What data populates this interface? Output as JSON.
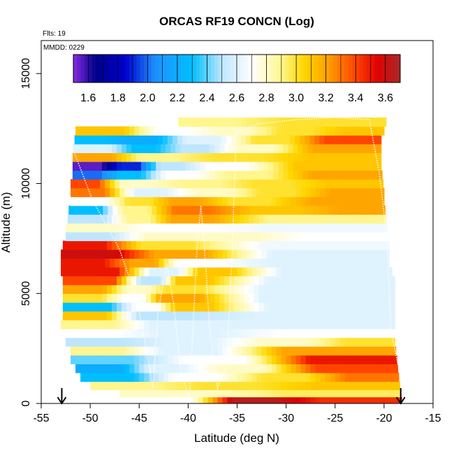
{
  "chart_data": {
    "type": "heatmap",
    "title": "ORCAS RF19 CONCN (Log)",
    "annotations": {
      "flights": "Flts: 19",
      "date": "MMDD: 0229"
    },
    "xlabel": "Latitude (deg N)",
    "ylabel": "Altitude (m)",
    "xlim": [
      -55,
      -15
    ],
    "ylim": [
      0,
      16500
    ],
    "x_ticks": [
      -55,
      -50,
      -45,
      -40,
      -35,
      -30,
      -25,
      -20,
      -15
    ],
    "y_ticks": [
      0,
      5000,
      10000,
      15000
    ],
    "colorbar": {
      "range": [
        1.5,
        3.7
      ],
      "ticks": [
        1.6,
        1.8,
        2.0,
        2.2,
        2.4,
        2.6,
        2.8,
        3.0,
        3.2,
        3.4,
        3.6
      ],
      "stops": [
        {
          "v": 1.5,
          "c": "#8a2be2"
        },
        {
          "v": 1.65,
          "c": "#00008b"
        },
        {
          "v": 1.85,
          "c": "#0000cd"
        },
        {
          "v": 2.05,
          "c": "#1e90ff"
        },
        {
          "v": 2.3,
          "c": "#00bfff"
        },
        {
          "v": 2.5,
          "c": "#bfe6ff"
        },
        {
          "v": 2.7,
          "c": "#ffffff"
        },
        {
          "v": 2.9,
          "c": "#fff68f"
        },
        {
          "v": 3.05,
          "c": "#ffd700"
        },
        {
          "v": 3.2,
          "c": "#ffa500"
        },
        {
          "v": 3.4,
          "c": "#ff4500"
        },
        {
          "v": 3.55,
          "c": "#e00000"
        },
        {
          "v": 3.7,
          "c": "#a52a2a"
        }
      ]
    },
    "coverage_edges": [
      {
        "alt": 0,
        "lat_min": -46.5,
        "lat_max": -18.2
      },
      {
        "alt": 1000,
        "lat_min": -50.0,
        "lat_max": -18.4
      },
      {
        "alt": 2000,
        "lat_min": -52.0,
        "lat_max": -18.6
      },
      {
        "alt": 3200,
        "lat_min": -53.0,
        "lat_max": -18.9
      },
      {
        "alt": 5000,
        "lat_min": -52.8,
        "lat_max": -19.0
      },
      {
        "alt": 6500,
        "lat_min": -53.0,
        "lat_max": -19.5
      },
      {
        "alt": 7500,
        "lat_min": -52.5,
        "lat_max": -19.5
      },
      {
        "alt": 9500,
        "lat_min": -52.0,
        "lat_max": -20.0
      },
      {
        "alt": 11500,
        "lat_min": -51.8,
        "lat_max": -20.3
      },
      {
        "alt": 12600,
        "lat_min": -51.5,
        "lat_max": -19.8
      }
    ],
    "bands": [
      {
        "alt": 150,
        "segments": [
          [
            -47,
            -36.5,
            2.7
          ],
          [
            -36.5,
            -30,
            3.65
          ],
          [
            -30,
            -18.2,
            3.45
          ]
        ]
      },
      {
        "alt": 450,
        "segments": [
          [
            -47,
            -35,
            2.8
          ],
          [
            -35,
            -18.3,
            2.95
          ]
        ]
      },
      {
        "alt": 800,
        "segments": [
          [
            -50,
            -42,
            2.9
          ],
          [
            -42,
            -30,
            3.0
          ],
          [
            -30,
            -18.4,
            3.1
          ]
        ]
      },
      {
        "alt": 1200,
        "segments": [
          [
            -51,
            -44,
            2.3
          ],
          [
            -44,
            -35,
            2.7
          ],
          [
            -35,
            -25,
            3.0
          ],
          [
            -25,
            -18.5,
            3.3
          ]
        ]
      },
      {
        "alt": 1600,
        "segments": [
          [
            -51.5,
            -45,
            2.2
          ],
          [
            -45,
            -40,
            2.6
          ],
          [
            -40,
            -30,
            2.8
          ],
          [
            -30,
            -18.6,
            3.4
          ]
        ]
      },
      {
        "alt": 2000,
        "segments": [
          [
            -52,
            -45,
            2.4
          ],
          [
            -45,
            -30,
            2.7
          ],
          [
            -30,
            -18.7,
            3.5
          ]
        ]
      },
      {
        "alt": 2400,
        "segments": [
          [
            -52,
            -46,
            2.9
          ],
          [
            -46,
            -35,
            2.6
          ],
          [
            -35,
            -18.8,
            3.2
          ]
        ]
      },
      {
        "alt": 2800,
        "segments": [
          [
            -52.5,
            -45,
            2.5
          ],
          [
            -45,
            -35,
            2.6
          ],
          [
            -35,
            -25,
            2.8
          ],
          [
            -25,
            -18.9,
            3.0
          ]
        ]
      },
      {
        "alt": 3200,
        "segments": [
          [
            -53,
            -46,
            2.7
          ],
          [
            -46,
            -35,
            2.6
          ],
          [
            -35,
            -18.9,
            2.7
          ]
        ]
      },
      {
        "alt": 3600,
        "segments": [
          [
            -53,
            -46,
            2.9
          ],
          [
            -46,
            -38,
            2.6
          ],
          [
            -38,
            -18.9,
            2.6
          ]
        ]
      },
      {
        "alt": 4000,
        "segments": [
          [
            -52.8,
            -47,
            3.1
          ],
          [
            -47,
            -40,
            2.5
          ],
          [
            -40,
            -18.9,
            2.6
          ]
        ]
      },
      {
        "alt": 4400,
        "segments": [
          [
            -52.8,
            -46,
            2.3
          ],
          [
            -46,
            -42,
            2.7
          ],
          [
            -42,
            -39,
            3.1
          ],
          [
            -39,
            -18.9,
            2.6
          ]
        ]
      },
      {
        "alt": 4800,
        "segments": [
          [
            -52.8,
            -47,
            3.0
          ],
          [
            -47,
            -44,
            2.7
          ],
          [
            -44,
            -40,
            3.2
          ],
          [
            -40,
            -18.9,
            2.6
          ]
        ]
      },
      {
        "alt": 5200,
        "segments": [
          [
            -52.8,
            -47,
            3.2
          ],
          [
            -47,
            -43,
            2.8
          ],
          [
            -43,
            -40,
            3.0
          ],
          [
            -40,
            -18.9,
            2.6
          ]
        ]
      },
      {
        "alt": 5600,
        "segments": [
          [
            -52.8,
            -45,
            3.4
          ],
          [
            -45,
            -42,
            2.5
          ],
          [
            -42,
            -39,
            3.1
          ],
          [
            -39,
            -18.9,
            2.6
          ]
        ]
      },
      {
        "alt": 6000,
        "segments": [
          [
            -53,
            -45,
            3.5
          ],
          [
            -45,
            -39,
            2.6
          ],
          [
            -39,
            -37,
            3.1
          ],
          [
            -37,
            -19.2,
            2.6
          ]
        ]
      },
      {
        "alt": 6400,
        "segments": [
          [
            -53,
            -47,
            3.5
          ],
          [
            -47,
            -42,
            3.2
          ],
          [
            -42,
            -38,
            2.7
          ],
          [
            -38,
            -19.5,
            2.6
          ]
        ]
      },
      {
        "alt": 6800,
        "segments": [
          [
            -53,
            -46,
            3.6
          ],
          [
            -46,
            -37,
            3.2
          ],
          [
            -37,
            -19.5,
            2.6
          ]
        ]
      },
      {
        "alt": 7200,
        "segments": [
          [
            -52.8,
            -48,
            3.5
          ],
          [
            -48,
            -38,
            3.0
          ],
          [
            -38,
            -19.5,
            2.65
          ]
        ]
      },
      {
        "alt": 7600,
        "segments": [
          [
            -52.5,
            -47,
            2.5
          ],
          [
            -47,
            -38,
            2.8
          ],
          [
            -38,
            -32,
            2.8
          ],
          [
            -32,
            -19.6,
            2.7
          ]
        ]
      },
      {
        "alt": 8000,
        "segments": [
          [
            -52.5,
            -47,
            2.8
          ],
          [
            -47,
            -37,
            2.7
          ],
          [
            -37,
            -19.7,
            2.65
          ]
        ]
      },
      {
        "alt": 8400,
        "segments": [
          [
            -52.3,
            -47,
            2.5
          ],
          [
            -47,
            -43,
            2.9
          ],
          [
            -43,
            -38,
            3.2
          ],
          [
            -38,
            -19.8,
            2.9
          ]
        ]
      },
      {
        "alt": 8800,
        "segments": [
          [
            -52.2,
            -48,
            2.3
          ],
          [
            -48,
            -43,
            2.9
          ],
          [
            -43,
            -37,
            3.3
          ],
          [
            -37,
            -25,
            3.1
          ],
          [
            -25,
            -19.9,
            3.2
          ]
        ]
      },
      {
        "alt": 9200,
        "segments": [
          [
            -52,
            -47,
            2.7
          ],
          [
            -47,
            -43,
            3.0
          ],
          [
            -43,
            -38,
            3.2
          ],
          [
            -38,
            -30,
            3.0
          ],
          [
            -30,
            -20,
            3.2
          ]
        ]
      },
      {
        "alt": 9600,
        "segments": [
          [
            -52,
            -48,
            3.3
          ],
          [
            -48,
            -40,
            2.6
          ],
          [
            -40,
            -35,
            2.8
          ],
          [
            -35,
            -27,
            3.0
          ],
          [
            -27,
            -20,
            3.2
          ]
        ]
      },
      {
        "alt": 10000,
        "segments": [
          [
            -52,
            -49,
            3.4
          ],
          [
            -49,
            -42,
            2.8
          ],
          [
            -42,
            -35,
            2.9
          ],
          [
            -35,
            -28,
            3.0
          ],
          [
            -28,
            -20.1,
            3.1
          ]
        ]
      },
      {
        "alt": 10400,
        "segments": [
          [
            -51.8,
            -48,
            2.0
          ],
          [
            -48,
            -44,
            2.3
          ],
          [
            -44,
            -38,
            2.7
          ],
          [
            -38,
            -30,
            2.9
          ],
          [
            -30,
            -20.2,
            3.2
          ]
        ]
      },
      {
        "alt": 10800,
        "segments": [
          [
            -51.8,
            -48,
            1.55
          ],
          [
            -48,
            -44,
            1.9
          ],
          [
            -44,
            -40,
            2.5
          ],
          [
            -40,
            -33,
            2.7
          ],
          [
            -33,
            -20.3,
            3.1
          ]
        ]
      },
      {
        "alt": 11200,
        "segments": [
          [
            -51.8,
            -47,
            3.2
          ],
          [
            -47,
            -40,
            2.9
          ],
          [
            -40,
            -30,
            3.0
          ],
          [
            -30,
            -20.3,
            3.1
          ]
        ]
      },
      {
        "alt": 11600,
        "segments": [
          [
            -51.8,
            -47,
            2.6
          ],
          [
            -47,
            -42,
            2.3
          ],
          [
            -42,
            -37,
            2.5
          ],
          [
            -37,
            -30,
            2.8
          ],
          [
            -30,
            -20.3,
            3.2
          ]
        ]
      },
      {
        "alt": 12000,
        "segments": [
          [
            -51.6,
            -48,
            2.3
          ],
          [
            -48,
            -42,
            2.2
          ],
          [
            -42,
            -35,
            2.6
          ],
          [
            -35,
            -28,
            3.0
          ],
          [
            -28,
            -20.3,
            3.4
          ]
        ]
      },
      {
        "alt": 12400,
        "segments": [
          [
            -51.5,
            -45,
            3.1
          ],
          [
            -45,
            -38,
            2.7
          ],
          [
            -38,
            -33,
            2.8
          ],
          [
            -33,
            -25,
            3.0
          ],
          [
            -25,
            -20,
            3.1
          ]
        ]
      },
      {
        "alt": 12800,
        "segments": [
          [
            -41,
            -35,
            2.9
          ],
          [
            -35,
            -19.8,
            3.0
          ]
        ]
      }
    ],
    "flight_track": [
      [
        -52.4,
        12300
      ],
      [
        -49.8,
        9300
      ],
      [
        -47.0,
        7000
      ],
      [
        -45.2,
        4700
      ],
      [
        -44.3,
        2500
      ],
      [
        -43.6,
        700
      ],
      [
        -43.1,
        4000
      ],
      [
        -42.2,
        6400
      ],
      [
        -41.5,
        4600
      ],
      [
        -40.7,
        1300
      ],
      [
        -39.9,
        300
      ],
      [
        -39.6,
        2600
      ],
      [
        -39.1,
        7000
      ],
      [
        -38.7,
        9000
      ],
      [
        -38.2,
        6300
      ],
      [
        -37.8,
        3300
      ],
      [
        -37.0,
        700
      ],
      [
        -36.1,
        1700
      ],
      [
        -35.5,
        7000
      ],
      [
        -35.1,
        12300
      ],
      [
        -33.0,
        12700
      ],
      [
        -29.0,
        12900
      ],
      [
        -25.0,
        13000
      ],
      [
        -21.5,
        12900
      ],
      [
        -20.5,
        10500
      ],
      [
        -19.7,
        7500
      ],
      [
        -19.3,
        3300
      ],
      [
        -18.5,
        1600
      ]
    ],
    "arrow_markers": [
      -52.9,
      -18.3
    ]
  }
}
